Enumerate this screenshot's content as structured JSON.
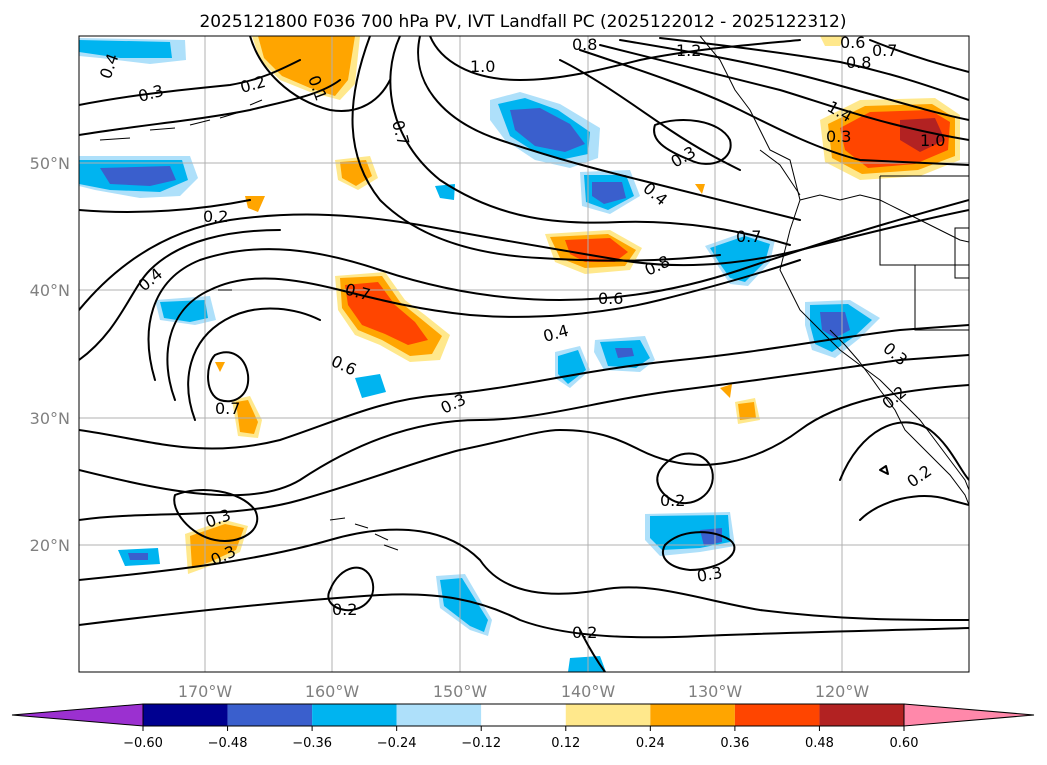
{
  "title": "2025121800 F036 700 hPa PV, IVT Landfall PC (2025122012 - 2025122312)",
  "axes": {
    "lon_ticks": [
      "170°W",
      "160°W",
      "150°W",
      "140°W",
      "130°W",
      "120°W"
    ],
    "lat_ticks": [
      "50°N",
      "40°N",
      "30°N",
      "20°N"
    ]
  },
  "colorbar": {
    "ticks": [
      "−0.60",
      "−0.48",
      "−0.36",
      "−0.24",
      "−0.12",
      "0.12",
      "0.24",
      "0.36",
      "0.48",
      "0.60"
    ],
    "colors": [
      "#9b30d0",
      "#000090",
      "#3a5fcd",
      "#00b4f0",
      "#aee0fa",
      "#ffffff",
      "#ffe88c",
      "#ffa500",
      "#ff4500",
      "#b22222",
      "#ff88aa"
    ]
  },
  "contour_labels": [
    "0.4",
    "0.3",
    "0.2",
    "0.1",
    "0.2",
    "0.7",
    "1.0",
    "0.8",
    "1.2",
    "0.6",
    "0.7",
    "0.8",
    "1.4",
    "1.0",
    "0.3",
    "0.3",
    "0.4",
    "0.7",
    "0.8",
    "0.6",
    "0.4",
    "0.7",
    "0.6",
    "0.3",
    "0.7",
    "0.4",
    "0.2",
    "0.2",
    "0.3",
    "0.2",
    "0.3",
    "0.2",
    "0.2",
    "0.3",
    "0.3"
  ]
}
